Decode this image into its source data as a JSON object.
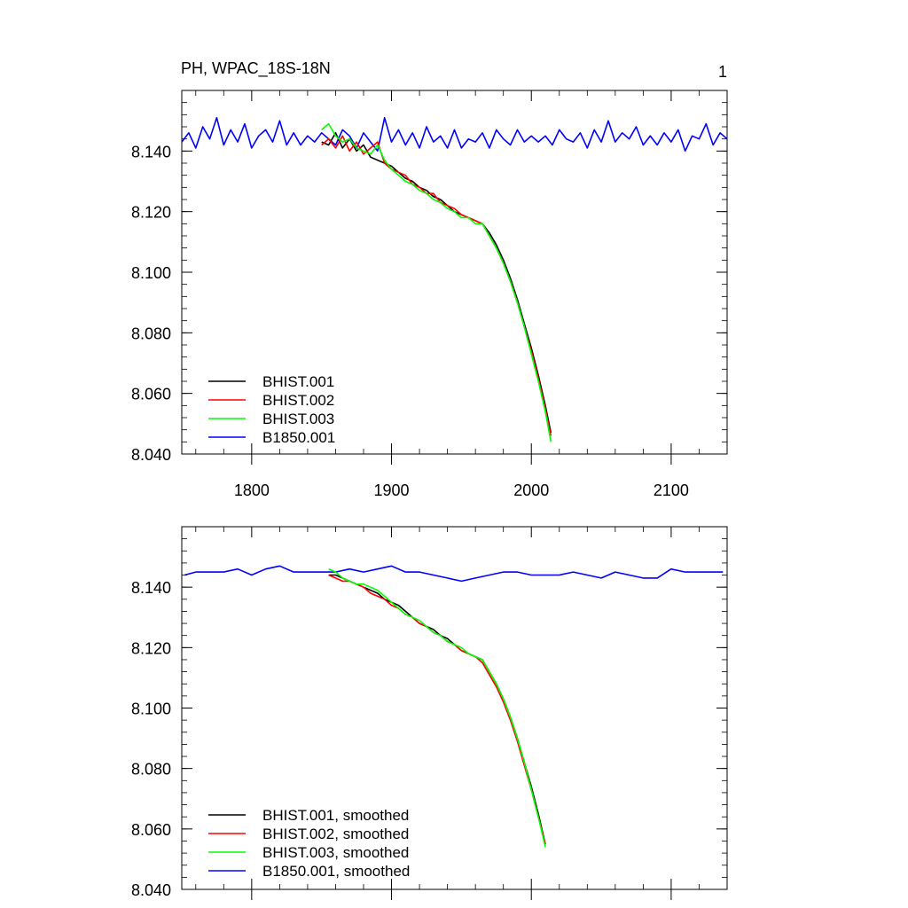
{
  "figure": {
    "title_left": "PH, WPAC_18S-18N",
    "title_right": "1"
  },
  "chart_data": [
    {
      "type": "line",
      "panel": "top",
      "xlim": [
        1750,
        2140
      ],
      "ylim": [
        8.04,
        8.16
      ],
      "xticks": [
        1800,
        1900,
        2000,
        2100
      ],
      "xtick_labels": [
        "1800",
        "1900",
        "2000",
        "2100"
      ],
      "yticks": [
        8.04,
        8.06,
        8.08,
        8.1,
        8.12,
        8.14
      ],
      "ytick_labels": [
        "8.040",
        "8.060",
        "8.080",
        "8.100",
        "8.120",
        "8.140"
      ],
      "legend_position": "bottom-left",
      "grid": false,
      "series": [
        {
          "name": "BHIST.001",
          "color": "#000000",
          "x": [
            1850,
            1855,
            1860,
            1865,
            1870,
            1875,
            1880,
            1885,
            1890,
            1895,
            1900,
            1905,
            1910,
            1915,
            1920,
            1925,
            1930,
            1935,
            1940,
            1945,
            1950,
            1955,
            1960,
            1965,
            1970,
            1975,
            1980,
            1985,
            1990,
            1995,
            2000,
            2005,
            2010,
            2014
          ],
          "y": [
            8.143,
            8.142,
            8.146,
            8.141,
            8.144,
            8.14,
            8.142,
            8.138,
            8.137,
            8.136,
            8.135,
            8.133,
            8.131,
            8.13,
            8.128,
            8.127,
            8.125,
            8.124,
            8.122,
            8.12,
            8.119,
            8.118,
            8.117,
            8.116,
            8.113,
            8.109,
            8.104,
            8.098,
            8.091,
            8.083,
            8.075,
            8.066,
            8.056,
            8.047
          ]
        },
        {
          "name": "BHIST.002",
          "color": "#ff0000",
          "x": [
            1850,
            1855,
            1860,
            1865,
            1870,
            1875,
            1880,
            1885,
            1890,
            1895,
            1900,
            1905,
            1910,
            1915,
            1920,
            1925,
            1930,
            1935,
            1940,
            1945,
            1950,
            1955,
            1960,
            1965,
            1970,
            1975,
            1980,
            1985,
            1990,
            1995,
            2000,
            2005,
            2010,
            2014
          ],
          "y": [
            8.142,
            8.144,
            8.141,
            8.145,
            8.14,
            8.143,
            8.139,
            8.141,
            8.143,
            8.136,
            8.134,
            8.133,
            8.132,
            8.129,
            8.128,
            8.126,
            8.126,
            8.123,
            8.122,
            8.121,
            8.119,
            8.118,
            8.117,
            8.116,
            8.112,
            8.108,
            8.103,
            8.097,
            8.09,
            8.082,
            8.074,
            8.065,
            8.055,
            8.046
          ]
        },
        {
          "name": "BHIST.003",
          "color": "#00ff00",
          "x": [
            1850,
            1855,
            1860,
            1865,
            1870,
            1875,
            1880,
            1885,
            1890,
            1895,
            1900,
            1905,
            1910,
            1915,
            1920,
            1925,
            1930,
            1935,
            1940,
            1945,
            1950,
            1955,
            1960,
            1965,
            1970,
            1975,
            1980,
            1985,
            1990,
            1995,
            2000,
            2005,
            2010,
            2014
          ],
          "y": [
            8.147,
            8.149,
            8.145,
            8.143,
            8.144,
            8.141,
            8.14,
            8.139,
            8.142,
            8.137,
            8.134,
            8.132,
            8.13,
            8.129,
            8.127,
            8.126,
            8.124,
            8.123,
            8.121,
            8.12,
            8.118,
            8.118,
            8.116,
            8.116,
            8.112,
            8.108,
            8.103,
            8.097,
            8.09,
            8.082,
            8.073,
            8.064,
            8.054,
            8.044
          ]
        },
        {
          "name": "B1850.001",
          "color": "#0000ff",
          "x": [
            1750,
            1755,
            1760,
            1765,
            1770,
            1775,
            1780,
            1785,
            1790,
            1795,
            1800,
            1805,
            1810,
            1815,
            1820,
            1825,
            1830,
            1835,
            1840,
            1845,
            1850,
            1855,
            1860,
            1865,
            1870,
            1875,
            1880,
            1885,
            1890,
            1895,
            1900,
            1905,
            1910,
            1915,
            1920,
            1925,
            1930,
            1935,
            1940,
            1945,
            1950,
            1955,
            1960,
            1965,
            1970,
            1975,
            1980,
            1985,
            1990,
            1995,
            2000,
            2005,
            2010,
            2015,
            2020,
            2025,
            2030,
            2035,
            2040,
            2045,
            2050,
            2055,
            2060,
            2065,
            2070,
            2075,
            2080,
            2085,
            2090,
            2095,
            2100,
            2105,
            2110,
            2115,
            2120,
            2125,
            2130,
            2135,
            2140
          ],
          "y": [
            8.143,
            8.146,
            8.141,
            8.148,
            8.144,
            8.151,
            8.142,
            8.147,
            8.143,
            8.149,
            8.141,
            8.145,
            8.147,
            8.143,
            8.15,
            8.142,
            8.146,
            8.142,
            8.145,
            8.143,
            8.146,
            8.144,
            8.142,
            8.147,
            8.145,
            8.141,
            8.146,
            8.143,
            8.14,
            8.151,
            8.143,
            8.147,
            8.142,
            8.146,
            8.141,
            8.148,
            8.143,
            8.145,
            8.141,
            8.147,
            8.141,
            8.144,
            8.143,
            8.146,
            8.141,
            8.147,
            8.144,
            8.142,
            8.147,
            8.143,
            8.145,
            8.143,
            8.145,
            8.142,
            8.147,
            8.144,
            8.143,
            8.146,
            8.141,
            8.147,
            8.143,
            8.15,
            8.143,
            8.146,
            8.144,
            8.148,
            8.142,
            8.145,
            8.142,
            8.146,
            8.143,
            8.147,
            8.14,
            8.145,
            8.144,
            8.149,
            8.142,
            8.146,
            8.144
          ]
        }
      ]
    },
    {
      "type": "line",
      "panel": "bottom",
      "xlim": [
        1750,
        2140
      ],
      "ylim": [
        8.04,
        8.16
      ],
      "xticks": [
        1800,
        1900,
        2000,
        2100
      ],
      "yticks": [
        8.04,
        8.06,
        8.08,
        8.1,
        8.12,
        8.14
      ],
      "ytick_labels": [
        "8.040",
        "8.060",
        "8.080",
        "8.100",
        "8.120",
        "8.140"
      ],
      "legend_position": "bottom-left",
      "grid": false,
      "series": [
        {
          "name": "BHIST.001, smoothed",
          "color": "#000000",
          "x": [
            1855,
            1860,
            1865,
            1870,
            1875,
            1880,
            1885,
            1890,
            1895,
            1900,
            1905,
            1910,
            1915,
            1920,
            1925,
            1930,
            1935,
            1940,
            1945,
            1950,
            1955,
            1960,
            1965,
            1970,
            1975,
            1980,
            1985,
            1990,
            1995,
            2000,
            2005,
            2010
          ],
          "y": [
            8.144,
            8.144,
            8.143,
            8.142,
            8.141,
            8.14,
            8.139,
            8.138,
            8.136,
            8.135,
            8.134,
            8.132,
            8.13,
            8.128,
            8.127,
            8.126,
            8.124,
            8.123,
            8.121,
            8.119,
            8.118,
            8.117,
            8.116,
            8.112,
            8.108,
            8.103,
            8.097,
            8.09,
            8.082,
            8.074,
            8.065,
            8.055
          ]
        },
        {
          "name": "BHIST.002, smoothed",
          "color": "#ff0000",
          "x": [
            1855,
            1860,
            1865,
            1870,
            1875,
            1880,
            1885,
            1890,
            1895,
            1900,
            1905,
            1910,
            1915,
            1920,
            1925,
            1930,
            1935,
            1940,
            1945,
            1950,
            1955,
            1960,
            1965,
            1970,
            1975,
            1980,
            1985,
            1990,
            1995,
            2000,
            2005,
            2010
          ],
          "y": [
            8.144,
            8.143,
            8.142,
            8.142,
            8.141,
            8.14,
            8.138,
            8.137,
            8.136,
            8.134,
            8.133,
            8.131,
            8.13,
            8.128,
            8.127,
            8.125,
            8.124,
            8.122,
            8.121,
            8.119,
            8.118,
            8.117,
            8.115,
            8.111,
            8.107,
            8.102,
            8.096,
            8.089,
            8.081,
            8.073,
            8.064,
            8.055
          ]
        },
        {
          "name": "BHIST.003, smoothed",
          "color": "#00ff00",
          "x": [
            1855,
            1860,
            1865,
            1870,
            1875,
            1880,
            1885,
            1890,
            1895,
            1900,
            1905,
            1910,
            1915,
            1920,
            1925,
            1930,
            1935,
            1940,
            1945,
            1950,
            1955,
            1960,
            1965,
            1970,
            1975,
            1980,
            1985,
            1990,
            1995,
            2000,
            2005,
            2010
          ],
          "y": [
            8.146,
            8.145,
            8.143,
            8.142,
            8.141,
            8.141,
            8.14,
            8.139,
            8.137,
            8.135,
            8.133,
            8.131,
            8.13,
            8.129,
            8.127,
            8.125,
            8.124,
            8.122,
            8.121,
            8.12,
            8.118,
            8.117,
            8.116,
            8.112,
            8.108,
            8.103,
            8.097,
            8.09,
            8.082,
            8.073,
            8.064,
            8.054
          ]
        },
        {
          "name": "B1850.001, smoothed",
          "color": "#0000ff",
          "x": [
            1752,
            1760,
            1770,
            1780,
            1790,
            1800,
            1810,
            1820,
            1830,
            1840,
            1850,
            1860,
            1870,
            1880,
            1890,
            1900,
            1910,
            1920,
            1930,
            1940,
            1950,
            1960,
            1970,
            1980,
            1990,
            2000,
            2010,
            2020,
            2030,
            2040,
            2050,
            2060,
            2070,
            2080,
            2090,
            2100,
            2110,
            2120,
            2130,
            2137
          ],
          "y": [
            8.144,
            8.145,
            8.145,
            8.145,
            8.146,
            8.144,
            8.146,
            8.147,
            8.145,
            8.145,
            8.145,
            8.145,
            8.146,
            8.145,
            8.146,
            8.147,
            8.145,
            8.145,
            8.144,
            8.143,
            8.142,
            8.143,
            8.144,
            8.145,
            8.145,
            8.144,
            8.144,
            8.144,
            8.145,
            8.144,
            8.143,
            8.145,
            8.144,
            8.143,
            8.143,
            8.146,
            8.145,
            8.145,
            8.145,
            8.145
          ]
        }
      ]
    }
  ]
}
